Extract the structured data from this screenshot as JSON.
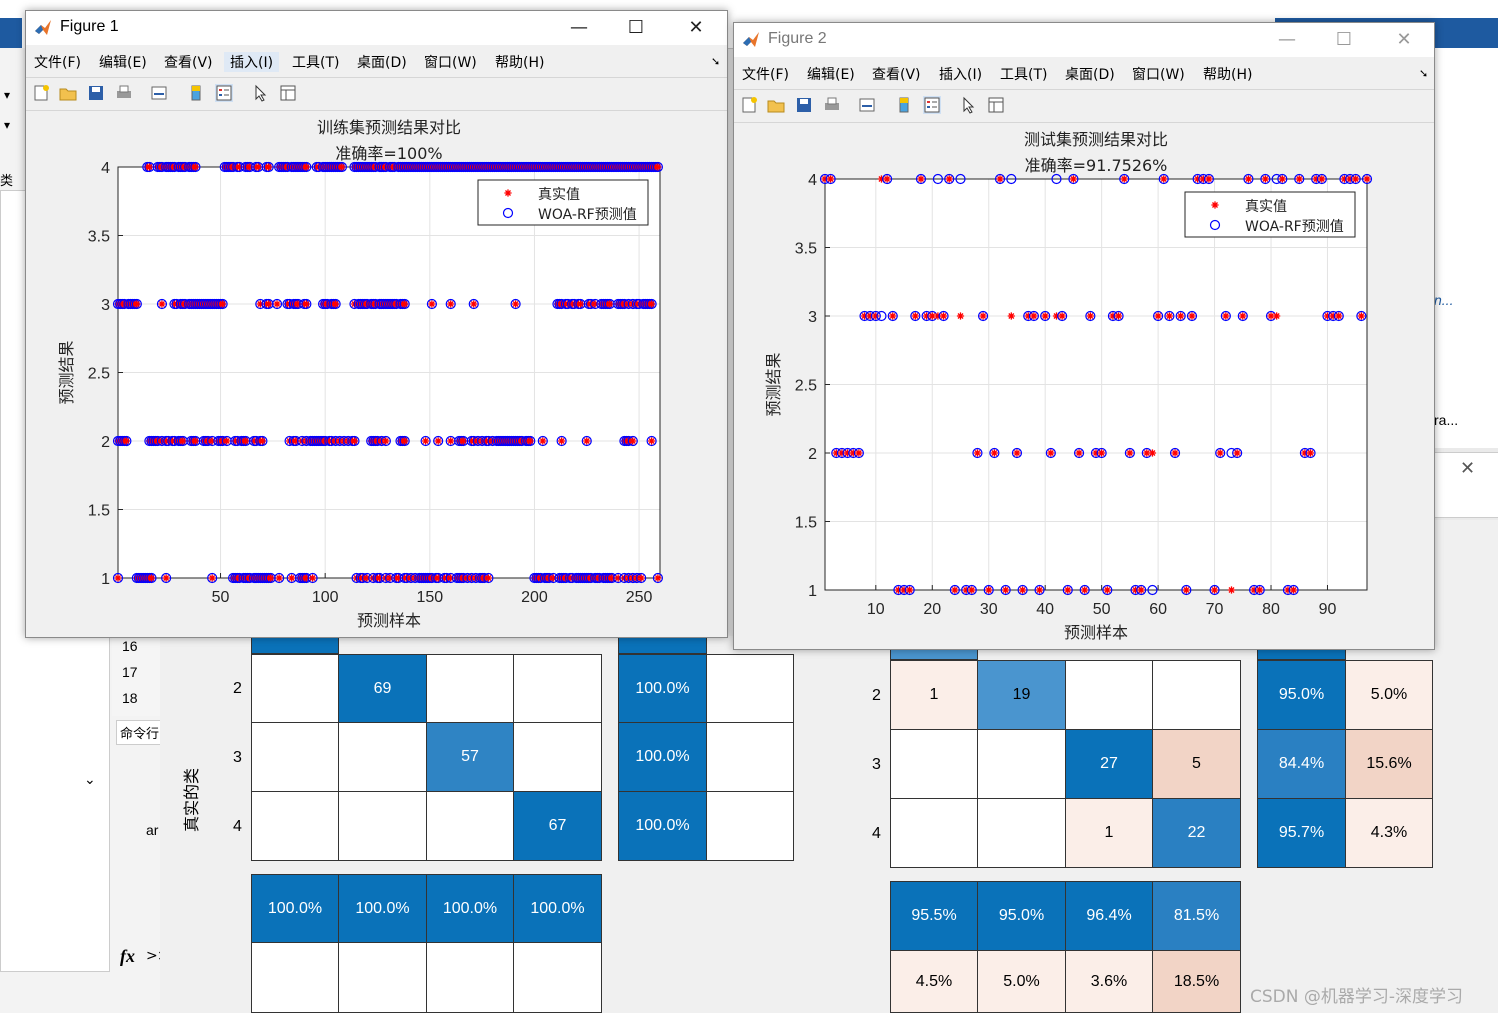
{
  "background": {
    "row_numbers": [
      "16",
      "17",
      "18"
    ],
    "cmd_label": "命令行",
    "fx_label": "fx",
    "side_text": "ar",
    "right_text_1": "n...",
    "right_text_2": "ra...",
    "left_label_1": "类",
    "left_label_2": "真实的类",
    "watermark": "CSDN @机器学习-深度学习"
  },
  "confusion_train": {
    "row_labels": [
      "2",
      "3",
      "4"
    ],
    "diag": [
      "69",
      "57",
      "67"
    ],
    "right_col": [
      "100.0%",
      "100.0%",
      "100.0%"
    ],
    "bottom_row": [
      "100.0%",
      "100.0%",
      "100.0%",
      "100.0%"
    ]
  },
  "confusion_test": {
    "row_labels": [
      "2",
      "3",
      "4"
    ],
    "r2": [
      "1",
      "19"
    ],
    "r3": [
      "27",
      "5"
    ],
    "r4": [
      "1",
      "22"
    ],
    "right_a": [
      "95.0%",
      "84.4%",
      "95.7%"
    ],
    "right_b": [
      "5.0%",
      "15.6%",
      "4.3%"
    ],
    "bottom_a": [
      "95.5%",
      "95.0%",
      "96.4%",
      "81.5%"
    ],
    "bottom_b": [
      "4.5%",
      "5.0%",
      "3.6%",
      "18.5%"
    ]
  },
  "menus": [
    "文件(F)",
    "编辑(E)",
    "查看(V)",
    "插入(I)",
    "工具(T)",
    "桌面(D)",
    "窗口(W)",
    "帮助(H)"
  ],
  "figure1": {
    "window_title": "Figure 1",
    "title_line1": "训练集预测结果对比",
    "title_line2": "准确率=100%",
    "xlabel": "预测样本",
    "ylabel": "预测结果",
    "legend_true": "真实值",
    "legend_pred": "WOA-RF预测值"
  },
  "figure2": {
    "window_title": "Figure 2",
    "title_line1": "测试集预测结果对比",
    "title_line2": "准确率=91.7526%",
    "xlabel": "预测样本",
    "ylabel": "预测结果",
    "legend_true": "真实值",
    "legend_pred": "WOA-RF预测值"
  },
  "chart_data": [
    {
      "type": "scatter",
      "title": "训练集预测结果对比 准确率=100%",
      "xlabel": "预测样本",
      "ylabel": "预测结果",
      "xlim": [
        1,
        260
      ],
      "ylim": [
        1,
        4
      ],
      "xticks": [
        50,
        100,
        150,
        200,
        250
      ],
      "yticks": [
        1,
        1.5,
        2,
        2.5,
        3,
        3.5,
        4
      ],
      "series": [
        {
          "name": "真实值",
          "marker": "*",
          "color": "#ff0000"
        },
        {
          "name": "WOA-RF预测值",
          "marker": "o",
          "color": "#0000ff"
        }
      ],
      "x_level1": [
        1,
        10,
        11,
        12,
        13,
        14,
        15,
        16,
        17,
        24,
        46,
        56,
        57,
        58,
        59,
        61,
        62,
        63,
        64,
        66,
        67,
        68,
        69,
        70,
        71,
        72,
        73,
        74,
        78,
        84,
        88,
        89,
        90,
        91,
        94,
        115,
        117,
        118,
        120,
        123,
        125,
        126,
        129,
        131,
        134,
        135,
        138,
        139,
        141,
        143,
        145,
        146,
        147,
        148,
        149,
        150,
        151,
        153,
        154,
        157,
        158,
        160,
        163,
        164,
        165,
        166,
        168,
        170,
        172,
        174,
        175,
        176,
        178,
        200,
        201,
        202,
        203,
        205,
        206,
        207,
        209,
        212,
        213,
        214,
        215,
        217,
        218,
        220,
        221,
        222,
        223,
        224,
        225,
        226,
        227,
        229,
        230,
        231,
        233,
        234,
        235,
        236,
        237,
        240,
        243,
        245,
        247,
        249,
        251,
        259
      ],
      "x_level2": [
        1,
        2,
        3,
        4,
        5,
        16,
        17,
        18,
        19,
        20,
        22,
        24,
        25,
        27,
        28,
        30,
        31,
        32,
        36,
        37,
        38,
        42,
        43,
        44,
        46,
        49,
        50,
        51,
        53,
        57,
        58,
        60,
        61,
        62,
        66,
        67,
        69,
        70,
        83,
        85,
        86,
        89,
        91,
        93,
        94,
        95,
        96,
        97,
        98,
        99,
        100,
        102,
        103,
        105,
        107,
        109,
        111,
        113,
        114,
        122,
        123,
        124,
        125,
        127,
        129,
        136,
        137,
        138,
        148,
        154,
        160,
        164,
        165,
        166,
        170,
        171,
        173,
        175,
        177,
        178,
        180,
        182,
        183,
        184,
        185,
        186,
        187,
        188,
        189,
        190,
        191,
        192,
        193,
        194,
        196,
        197,
        198,
        204,
        213,
        225,
        243,
        244,
        245,
        247,
        256
      ],
      "x_level3": [
        1,
        2,
        3,
        4,
        6,
        7,
        8,
        9,
        10,
        22,
        28,
        29,
        31,
        32,
        33,
        35,
        36,
        37,
        38,
        39,
        40,
        41,
        42,
        43,
        44,
        45,
        46,
        47,
        48,
        49,
        50,
        51,
        69,
        72,
        73,
        77,
        82,
        83,
        85,
        86,
        87,
        90,
        91,
        99,
        100,
        101,
        103,
        104,
        105,
        114,
        116,
        117,
        118,
        119,
        120,
        122,
        123,
        124,
        126,
        127,
        128,
        129,
        130,
        131,
        132,
        133,
        134,
        136,
        137,
        138,
        151,
        160,
        171,
        191,
        211,
        212,
        213,
        215,
        216,
        218,
        219,
        221,
        222,
        226,
        227,
        229,
        232,
        233,
        234,
        235,
        236,
        240,
        241,
        242,
        243,
        245,
        247,
        249,
        250,
        252,
        253,
        254,
        255,
        256
      ],
      "x_level4": [
        15,
        16,
        20,
        21,
        22,
        24,
        25,
        26,
        27,
        28,
        30,
        31,
        32,
        33,
        35,
        36,
        37,
        38,
        52,
        53,
        54,
        55,
        56,
        58,
        59,
        62,
        63,
        64,
        67,
        68,
        72,
        73,
        78,
        79,
        80,
        81,
        82,
        84,
        85,
        86,
        87,
        88,
        89,
        90,
        91,
        96,
        97,
        99,
        100,
        101,
        102,
        103,
        104,
        105,
        106,
        107,
        108,
        114,
        115,
        116,
        117,
        118,
        119,
        120,
        121,
        122,
        123,
        124,
        126,
        127,
        128,
        129,
        131,
        132,
        133,
        135,
        136,
        137,
        138,
        139,
        140,
        141,
        142,
        143,
        144,
        145,
        146,
        147,
        148,
        149,
        150,
        151,
        152,
        153,
        154,
        155,
        156,
        157,
        158,
        159,
        160,
        161,
        162,
        163,
        164,
        165,
        166,
        167,
        168,
        169,
        170,
        171,
        172,
        173,
        174,
        175,
        176,
        177,
        178,
        179,
        180,
        181,
        182,
        183,
        184,
        185,
        186,
        187,
        188,
        189,
        190,
        191,
        192,
        193,
        194,
        195,
        196,
        197,
        198,
        199,
        200,
        201,
        202,
        203,
        204,
        205,
        206,
        207,
        208,
        209,
        210,
        211,
        212,
        213,
        214,
        215,
        216,
        217,
        218,
        219,
        220,
        221,
        222,
        223,
        224,
        225,
        226,
        227,
        228,
        229,
        230,
        231,
        232,
        233,
        234,
        235,
        236,
        237,
        238,
        239,
        240,
        241,
        242,
        243,
        244,
        245,
        246,
        247,
        248,
        249,
        250,
        251,
        252,
        253,
        254,
        255,
        256,
        257,
        258,
        259
      ]
    },
    {
      "type": "scatter",
      "title": "测试集预测结果对比 准确率=91.7526%",
      "xlabel": "预测样本",
      "ylabel": "预测结果",
      "xlim": [
        1,
        97
      ],
      "ylim": [
        1,
        4
      ],
      "xticks": [
        10,
        20,
        30,
        40,
        50,
        60,
        70,
        80,
        90
      ],
      "yticks": [
        1,
        1.5,
        2,
        2.5,
        3,
        3.5,
        4
      ],
      "series": [
        {
          "name": "真实值",
          "marker": "*",
          "color": "#ff0000"
        },
        {
          "name": "WOA-RF预测值",
          "marker": "o",
          "color": "#0000ff"
        }
      ],
      "points": [
        {
          "x": 1,
          "true": 4,
          "pred": 4
        },
        {
          "x": 2,
          "true": 4,
          "pred": 4
        },
        {
          "x": 3,
          "true": 2,
          "pred": 2
        },
        {
          "x": 4,
          "true": 2,
          "pred": 2
        },
        {
          "x": 5,
          "true": 2,
          "pred": 2
        },
        {
          "x": 6,
          "true": 2,
          "pred": 2
        },
        {
          "x": 7,
          "true": 2,
          "pred": 2
        },
        {
          "x": 8,
          "true": 3,
          "pred": 3
        },
        {
          "x": 9,
          "true": 3,
          "pred": 3
        },
        {
          "x": 10,
          "true": 3,
          "pred": 3
        },
        {
          "x": 11,
          "true": 4,
          "pred": 3
        },
        {
          "x": 12,
          "true": 4,
          "pred": 4
        },
        {
          "x": 13,
          "true": 3,
          "pred": 3
        },
        {
          "x": 14,
          "true": 1,
          "pred": 1
        },
        {
          "x": 15,
          "true": 1,
          "pred": 1
        },
        {
          "x": 16,
          "true": 1,
          "pred": 1
        },
        {
          "x": 17,
          "true": 3,
          "pred": 3
        },
        {
          "x": 18,
          "true": 4,
          "pred": 4
        },
        {
          "x": 19,
          "true": 3,
          "pred": 3
        },
        {
          "x": 20,
          "true": 3,
          "pred": 3
        },
        {
          "x": 21,
          "true": 3,
          "pred": 4
        },
        {
          "x": 22,
          "true": 3,
          "pred": 3
        },
        {
          "x": 23,
          "true": 4,
          "pred": 4
        },
        {
          "x": 24,
          "true": 1,
          "pred": 1
        },
        {
          "x": 25,
          "true": 3,
          "pred": 4
        },
        {
          "x": 26,
          "true": 1,
          "pred": 1
        },
        {
          "x": 27,
          "true": 1,
          "pred": 1
        },
        {
          "x": 28,
          "true": 2,
          "pred": 2
        },
        {
          "x": 29,
          "true": 3,
          "pred": 3
        },
        {
          "x": 30,
          "true": 1,
          "pred": 1
        },
        {
          "x": 31,
          "true": 2,
          "pred": 2
        },
        {
          "x": 32,
          "true": 4,
          "pred": 4
        },
        {
          "x": 33,
          "true": 1,
          "pred": 1
        },
        {
          "x": 34,
          "true": 3,
          "pred": 4
        },
        {
          "x": 35,
          "true": 2,
          "pred": 2
        },
        {
          "x": 36,
          "true": 1,
          "pred": 1
        },
        {
          "x": 37,
          "true": 3,
          "pred": 3
        },
        {
          "x": 38,
          "true": 3,
          "pred": 3
        },
        {
          "x": 39,
          "true": 1,
          "pred": 1
        },
        {
          "x": 40,
          "true": 3,
          "pred": 3
        },
        {
          "x": 41,
          "true": 2,
          "pred": 2
        },
        {
          "x": 42,
          "true": 3,
          "pred": 4
        },
        {
          "x": 43,
          "true": 3,
          "pred": 3
        },
        {
          "x": 44,
          "true": 1,
          "pred": 1
        },
        {
          "x": 45,
          "true": 4,
          "pred": 4
        },
        {
          "x": 46,
          "true": 2,
          "pred": 2
        },
        {
          "x": 47,
          "true": 1,
          "pred": 1
        },
        {
          "x": 48,
          "true": 3,
          "pred": 3
        },
        {
          "x": 49,
          "true": 2,
          "pred": 2
        },
        {
          "x": 50,
          "true": 2,
          "pred": 2
        },
        {
          "x": 51,
          "true": 1,
          "pred": 1
        },
        {
          "x": 52,
          "true": 3,
          "pred": 3
        },
        {
          "x": 53,
          "true": 3,
          "pred": 3
        },
        {
          "x": 54,
          "true": 4,
          "pred": 4
        },
        {
          "x": 55,
          "true": 2,
          "pred": 2
        },
        {
          "x": 56,
          "true": 1,
          "pred": 1
        },
        {
          "x": 57,
          "true": 1,
          "pred": 1
        },
        {
          "x": 58,
          "true": 2,
          "pred": 2
        },
        {
          "x": 59,
          "true": 2,
          "pred": 1
        },
        {
          "x": 60,
          "true": 3,
          "pred": 3
        },
        {
          "x": 61,
          "true": 4,
          "pred": 4
        },
        {
          "x": 62,
          "true": 3,
          "pred": 3
        },
        {
          "x": 63,
          "true": 2,
          "pred": 2
        },
        {
          "x": 64,
          "true": 3,
          "pred": 3
        },
        {
          "x": 65,
          "true": 1,
          "pred": 1
        },
        {
          "x": 66,
          "true": 3,
          "pred": 3
        },
        {
          "x": 67,
          "true": 4,
          "pred": 4
        },
        {
          "x": 68,
          "true": 4,
          "pred": 4
        },
        {
          "x": 69,
          "true": 4,
          "pred": 4
        },
        {
          "x": 70,
          "true": 1,
          "pred": 1
        },
        {
          "x": 71,
          "true": 2,
          "pred": 2
        },
        {
          "x": 72,
          "true": 3,
          "pred": 3
        },
        {
          "x": 73,
          "true": 1,
          "pred": 2
        },
        {
          "x": 74,
          "true": 2,
          "pred": 2
        },
        {
          "x": 75,
          "true": 3,
          "pred": 3
        },
        {
          "x": 76,
          "true": 4,
          "pred": 4
        },
        {
          "x": 77,
          "true": 1,
          "pred": 1
        },
        {
          "x": 78,
          "true": 1,
          "pred": 1
        },
        {
          "x": 79,
          "true": 4,
          "pred": 4
        },
        {
          "x": 80,
          "true": 3,
          "pred": 3
        },
        {
          "x": 81,
          "true": 3,
          "pred": 4
        },
        {
          "x": 82,
          "true": 4,
          "pred": 4
        },
        {
          "x": 83,
          "true": 1,
          "pred": 1
        },
        {
          "x": 84,
          "true": 1,
          "pred": 1
        },
        {
          "x": 85,
          "true": 4,
          "pred": 4
        },
        {
          "x": 86,
          "true": 2,
          "pred": 2
        },
        {
          "x": 87,
          "true": 2,
          "pred": 2
        },
        {
          "x": 88,
          "true": 4,
          "pred": 4
        },
        {
          "x": 89,
          "true": 4,
          "pred": 4
        },
        {
          "x": 90,
          "true": 3,
          "pred": 3
        },
        {
          "x": 91,
          "true": 3,
          "pred": 3
        },
        {
          "x": 92,
          "true": 3,
          "pred": 3
        },
        {
          "x": 93,
          "true": 4,
          "pred": 4
        },
        {
          "x": 94,
          "true": 4,
          "pred": 4
        },
        {
          "x": 95,
          "true": 4,
          "pred": 4
        },
        {
          "x": 96,
          "true": 3,
          "pred": 3
        },
        {
          "x": 97,
          "true": 4,
          "pred": 4
        }
      ]
    }
  ]
}
